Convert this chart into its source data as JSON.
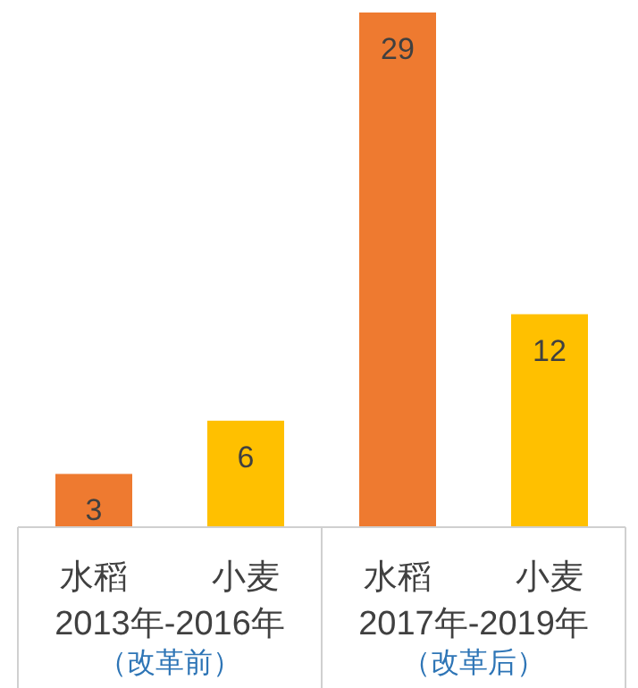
{
  "chart_data": {
    "type": "bar",
    "categories": [
      "水稻",
      "小麦",
      "水稻",
      "小麦"
    ],
    "values": [
      3,
      6,
      29,
      12
    ],
    "colors": [
      "#ee7a30",
      "#ffc000",
      "#ee7a30",
      "#ffc000"
    ],
    "data_labels": true,
    "annotations": [
      "2013年-2016年",
      "（改革前）",
      "2017年-2019年",
      "（改革后）"
    ]
  }
}
